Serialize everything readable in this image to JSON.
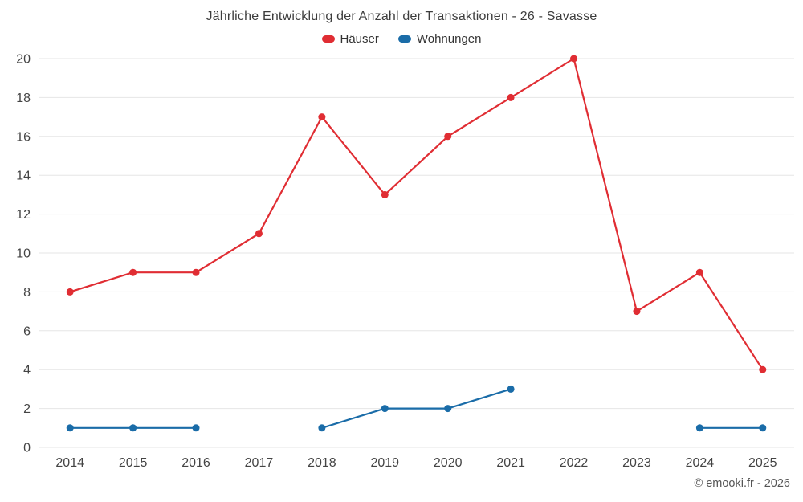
{
  "chart_data": {
    "type": "line",
    "title": "Jährliche Entwicklung der Anzahl der Transaktionen - 26 - Savasse",
    "categories": [
      "2014",
      "2015",
      "2016",
      "2017",
      "2018",
      "2019",
      "2020",
      "2021",
      "2022",
      "2023",
      "2024",
      "2025"
    ],
    "series": [
      {
        "name": "Häuser",
        "color": "#e02d33",
        "values": [
          8,
          9,
          9,
          11,
          17,
          13,
          16,
          18,
          20,
          7,
          9,
          4
        ]
      },
      {
        "name": "Wohnungen",
        "color": "#1a6ca8",
        "values": [
          1,
          1,
          1,
          null,
          1,
          2,
          2,
          3,
          null,
          null,
          1,
          1
        ]
      }
    ],
    "ylim": [
      0,
      20
    ],
    "ytick_step": 2,
    "grid": true,
    "grid_color": "#e6e6e6",
    "axis_text_color": "#444444",
    "legend_position": "top"
  },
  "copyright": "© emooki.fr - 2026"
}
